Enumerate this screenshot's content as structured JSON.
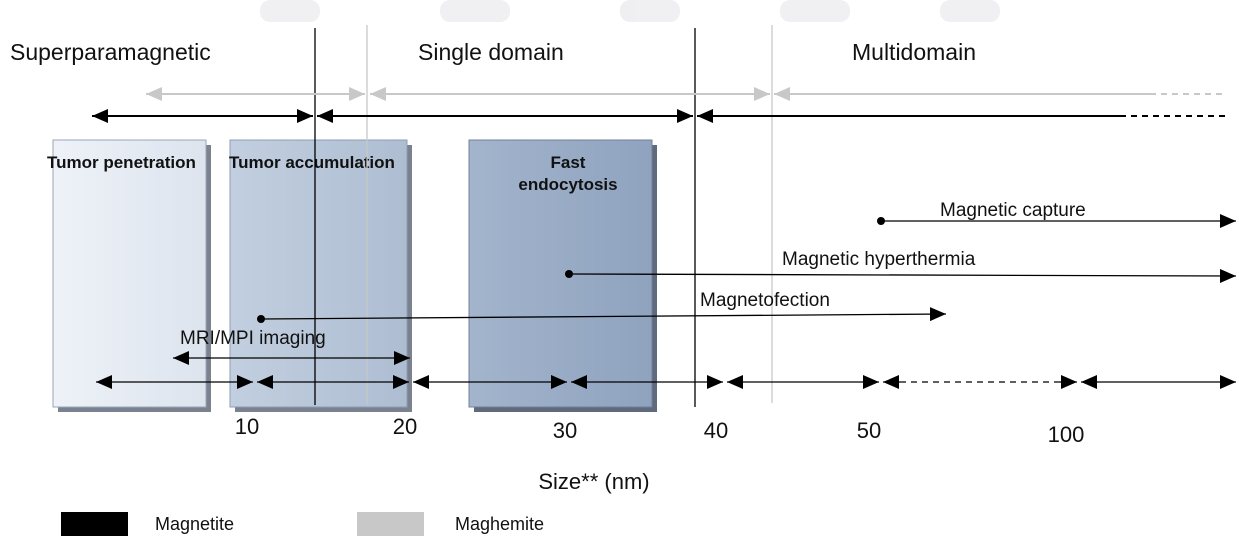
{
  "regions": {
    "superparamagnetic": "Superparamagnetic",
    "single_domain": "Single domain",
    "multidomain": "Multidomain"
  },
  "boxes": {
    "tumor_penetration": "Tumor penetration",
    "tumor_accumulation": "Tumor accumulation",
    "fast_endocytosis_line1": "Fast",
    "fast_endocytosis_line2": "endocytosis"
  },
  "applications": {
    "magnetic_capture": "Magnetic capture",
    "magnetic_hyperthermia": "Magnetic hyperthermia",
    "magnetofection": "Magnetofection",
    "mri_mpi_imaging": "MRI/MPI imaging"
  },
  "axis": {
    "ticks": [
      "10",
      "20",
      "30",
      "40",
      "50",
      "100"
    ],
    "title": "Size** (nm)"
  },
  "legend": {
    "magnetite": "Magnetite",
    "maghemite": "Maghemite",
    "magnetite_color": "#000000",
    "maghemite_color": "#c8c8c8"
  },
  "colors": {
    "box_light": "#e6ebf3",
    "box_mid": "#b4c2d6",
    "box_dark": "#97aac4",
    "gray_line": "#c8c8c8"
  }
}
